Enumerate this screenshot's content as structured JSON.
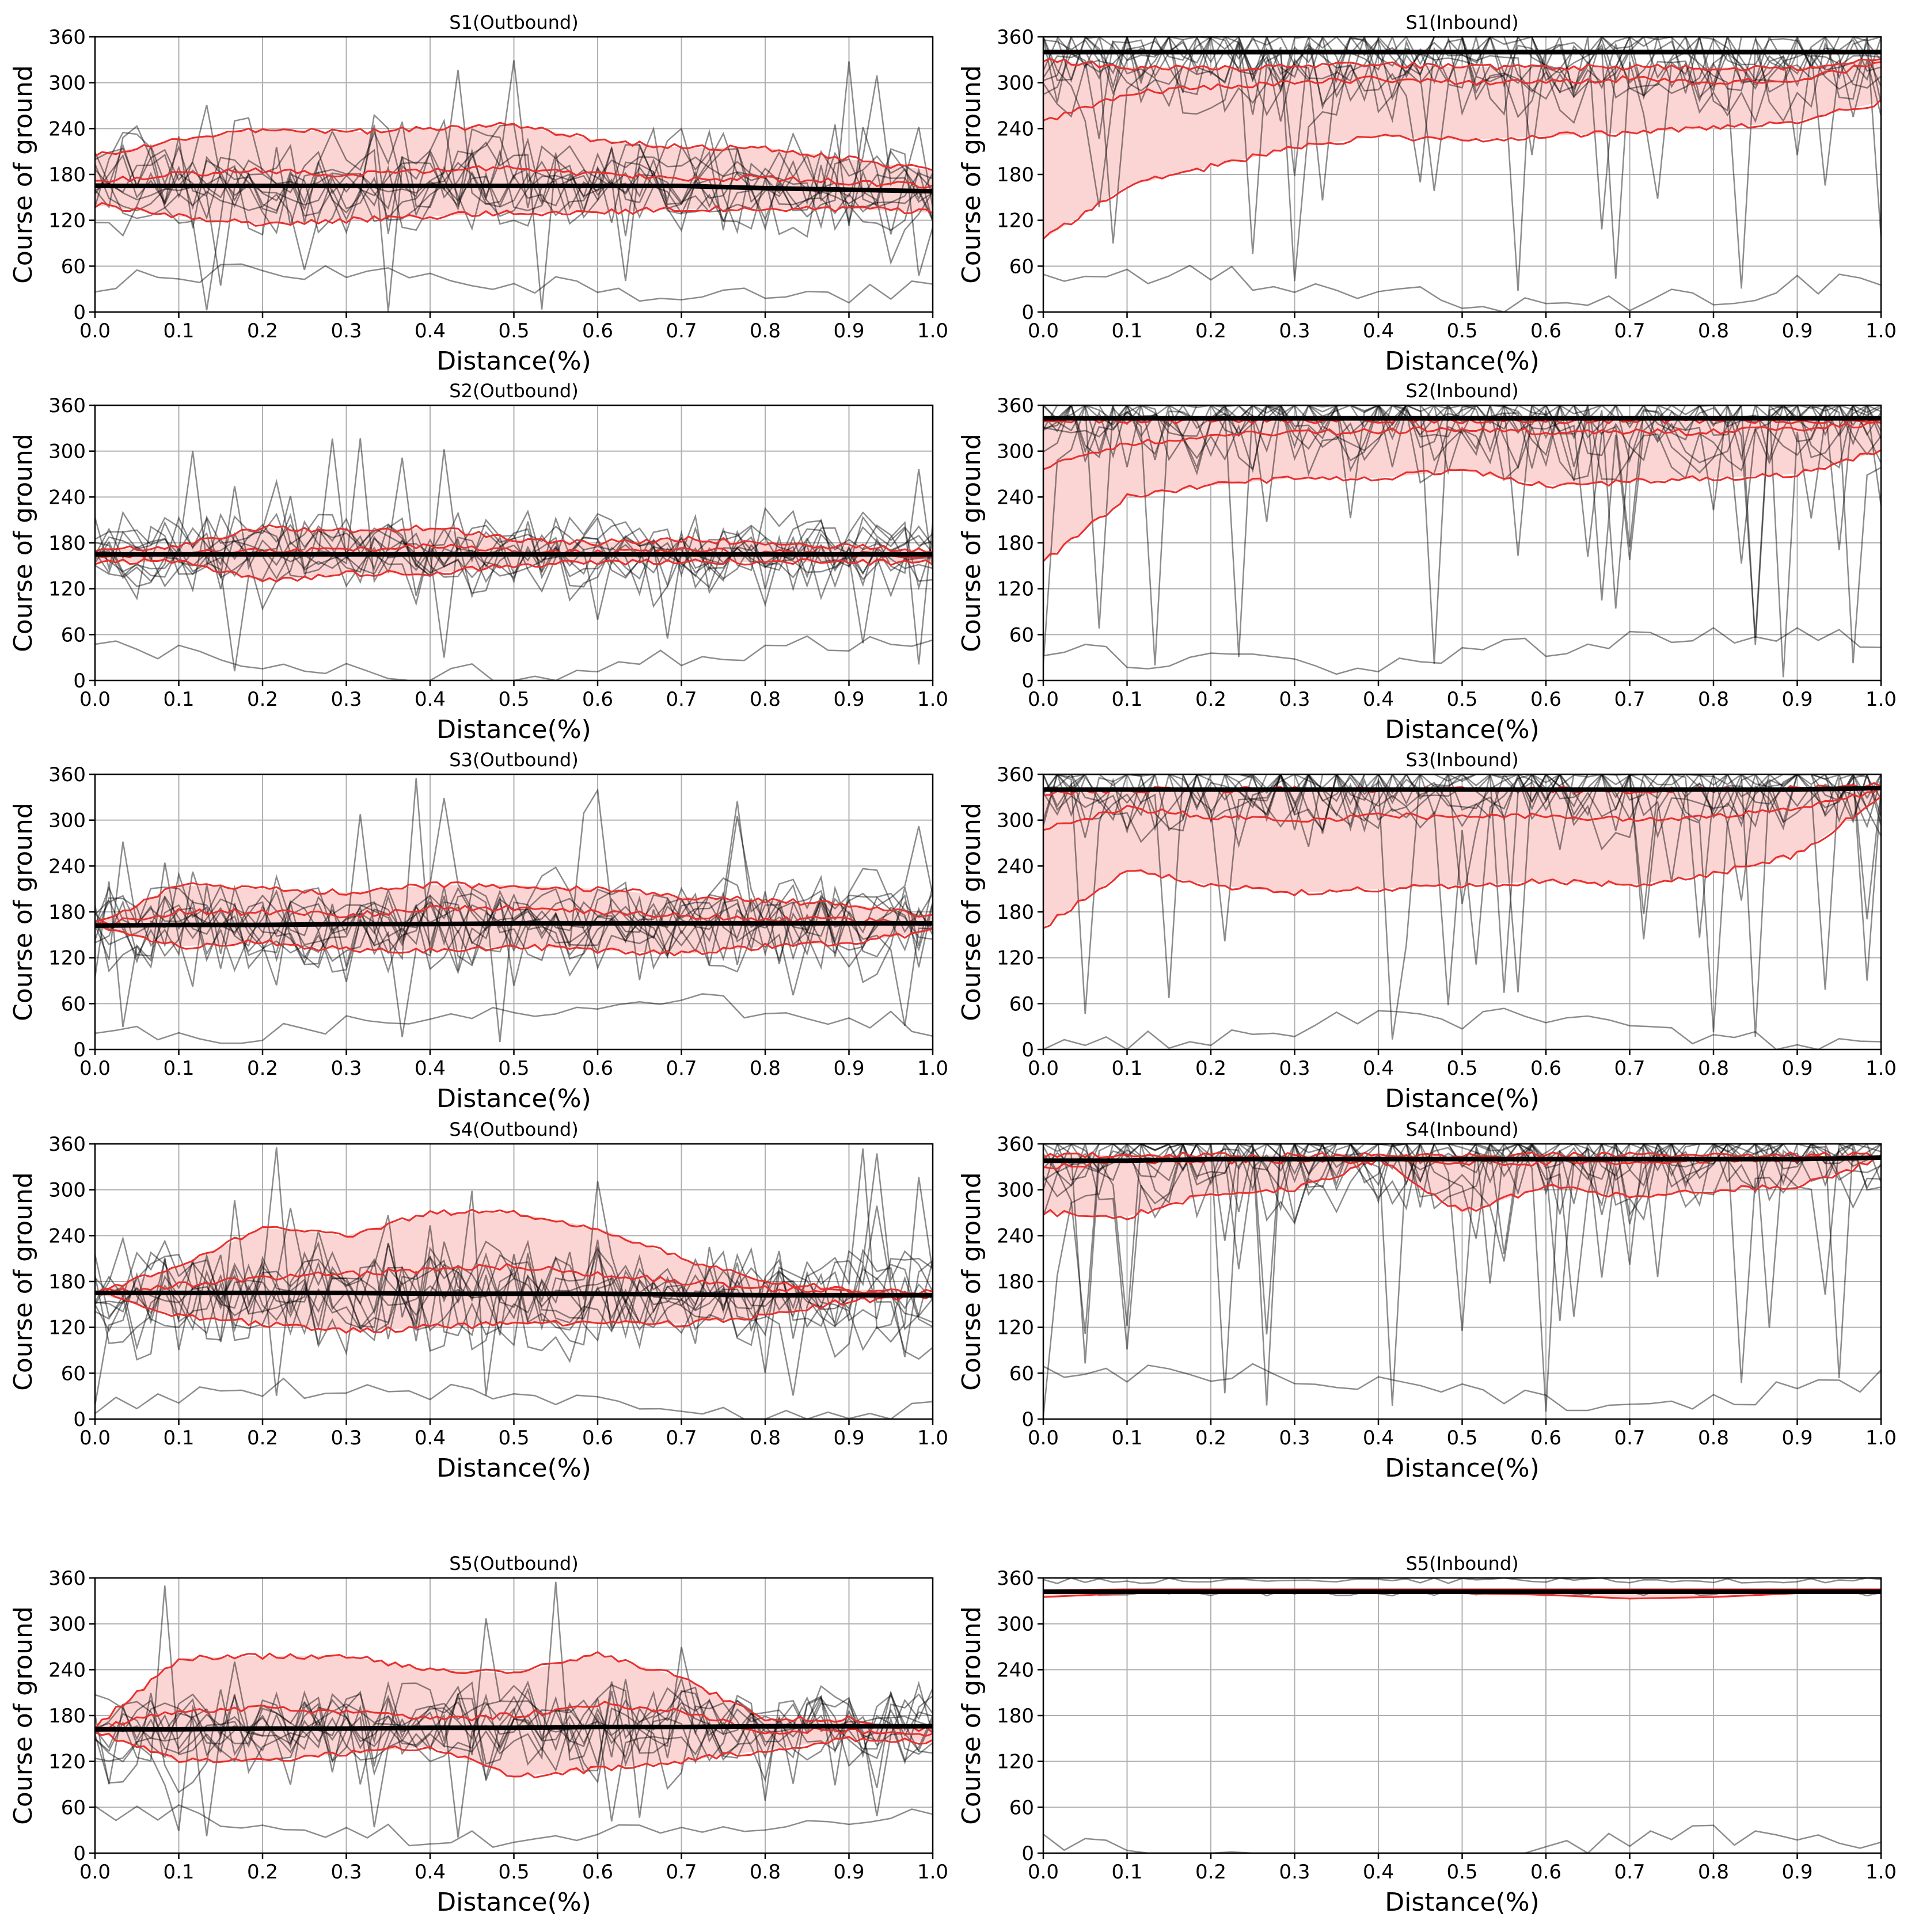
{
  "figure": {
    "panel_titles": [
      "S1(Outbound)",
      "S1(Inbound)",
      "S2(Outbound)",
      "S2(Inbound)",
      "S3(Outbound)",
      "S3(Inbound)",
      "S4(Outbound)",
      "S4(Inbound)",
      "S5(Outbound)",
      "S5(Inbound)"
    ],
    "xlabel": "Distance(%)",
    "ylabel": "Course of ground",
    "colors": {
      "trajectory": "#000000",
      "band_line": "#e8302e",
      "band_fill": "#fbd4d4",
      "grid": "#b0b0b0"
    }
  },
  "chart_data": [
    {
      "type": "line",
      "title": "S1(Outbound)",
      "xlabel": "Distance(%)",
      "ylabel": "Course of ground",
      "xlim": [
        0,
        1
      ],
      "ylim": [
        0,
        360
      ],
      "xticks": [
        "0.0",
        "0.1",
        "0.2",
        "0.3",
        "0.4",
        "0.5",
        "0.6",
        "0.7",
        "0.8",
        "0.9",
        "1.0"
      ],
      "yticks": [
        "0",
        "60",
        "120",
        "180",
        "240",
        "300",
        "360"
      ],
      "grid": true,
      "x": [
        0,
        0.1,
        0.2,
        0.3,
        0.4,
        0.5,
        0.6,
        0.7,
        0.8,
        0.9,
        1.0
      ],
      "series": [
        {
          "role": "mean",
          "values": [
            165,
            165,
            165,
            165,
            165,
            165,
            165,
            165,
            162,
            160,
            158
          ]
        },
        {
          "role": "band_upper",
          "values": [
            205,
            225,
            240,
            235,
            240,
            245,
            225,
            215,
            215,
            200,
            185
          ]
        },
        {
          "role": "band_middle",
          "values": [
            170,
            180,
            185,
            180,
            185,
            190,
            180,
            175,
            175,
            170,
            165
          ]
        },
        {
          "role": "band_lower",
          "values": [
            140,
            125,
            115,
            120,
            125,
            130,
            130,
            135,
            135,
            135,
            130
          ]
        }
      ]
    },
    {
      "type": "line",
      "title": "S1(Inbound)",
      "xlabel": "Distance(%)",
      "ylabel": "Course of ground",
      "xlim": [
        0,
        1
      ],
      "ylim": [
        0,
        360
      ],
      "xticks": [
        "0.0",
        "0.1",
        "0.2",
        "0.3",
        "0.4",
        "0.5",
        "0.6",
        "0.7",
        "0.8",
        "0.9",
        "1.0"
      ],
      "yticks": [
        "0",
        "60",
        "120",
        "180",
        "240",
        "300",
        "360"
      ],
      "grid": true,
      "x": [
        0,
        0.1,
        0.2,
        0.3,
        0.4,
        0.5,
        0.6,
        0.7,
        0.8,
        0.9,
        1.0
      ],
      "series": [
        {
          "role": "mean",
          "values": [
            340,
            340,
            340,
            340,
            340,
            340,
            340,
            340,
            340,
            340,
            340
          ]
        },
        {
          "role": "band_upper",
          "values": [
            330,
            320,
            320,
            320,
            325,
            320,
            320,
            320,
            320,
            320,
            330
          ]
        },
        {
          "role": "band_middle",
          "values": [
            250,
            285,
            295,
            300,
            305,
            300,
            300,
            305,
            300,
            305,
            325
          ]
        },
        {
          "role": "band_lower",
          "values": [
            95,
            165,
            190,
            215,
            230,
            225,
            230,
            235,
            240,
            250,
            275
          ]
        }
      ]
    },
    {
      "type": "line",
      "title": "S2(Outbound)",
      "xlabel": "Distance(%)",
      "ylabel": "Course of ground",
      "xlim": [
        0,
        1
      ],
      "ylim": [
        0,
        360
      ],
      "xticks": [
        "0.0",
        "0.1",
        "0.2",
        "0.3",
        "0.4",
        "0.5",
        "0.6",
        "0.7",
        "0.8",
        "0.9",
        "1.0"
      ],
      "yticks": [
        "0",
        "60",
        "120",
        "180",
        "240",
        "300",
        "360"
      ],
      "grid": true,
      "x": [
        0,
        0.1,
        0.2,
        0.3,
        0.4,
        0.5,
        0.6,
        0.7,
        0.8,
        0.9,
        1.0
      ],
      "series": [
        {
          "role": "mean",
          "values": [
            165,
            165,
            165,
            165,
            165,
            165,
            165,
            165,
            165,
            165,
            165
          ]
        },
        {
          "role": "band_upper",
          "values": [
            170,
            175,
            200,
            195,
            200,
            185,
            180,
            185,
            180,
            175,
            170
          ]
        },
        {
          "role": "band_middle",
          "values": [
            162,
            165,
            170,
            170,
            175,
            170,
            168,
            170,
            168,
            165,
            163
          ]
        },
        {
          "role": "band_lower",
          "values": [
            155,
            155,
            130,
            140,
            140,
            150,
            155,
            155,
            155,
            155,
            155
          ]
        }
      ]
    },
    {
      "type": "line",
      "title": "S2(Inbound)",
      "xlabel": "Distance(%)",
      "ylabel": "Course of ground",
      "xlim": [
        0,
        1
      ],
      "ylim": [
        0,
        360
      ],
      "xticks": [
        "0.0",
        "0.1",
        "0.2",
        "0.3",
        "0.4",
        "0.5",
        "0.6",
        "0.7",
        "0.8",
        "0.9",
        "1.0"
      ],
      "yticks": [
        "0",
        "60",
        "120",
        "180",
        "240",
        "300",
        "360"
      ],
      "grid": true,
      "x": [
        0,
        0.1,
        0.2,
        0.3,
        0.4,
        0.5,
        0.6,
        0.7,
        0.8,
        0.9,
        1.0
      ],
      "series": [
        {
          "role": "mean",
          "values": [
            343,
            343,
            343,
            343,
            343,
            343,
            343,
            343,
            343,
            343,
            343
          ]
        },
        {
          "role": "band_upper",
          "values": [
            340,
            340,
            340,
            340,
            340,
            340,
            340,
            340,
            340,
            340,
            340
          ]
        },
        {
          "role": "band_middle",
          "values": [
            280,
            310,
            320,
            325,
            325,
            330,
            325,
            325,
            325,
            330,
            335
          ]
        },
        {
          "role": "band_lower",
          "values": [
            155,
            240,
            255,
            265,
            265,
            275,
            255,
            260,
            265,
            270,
            300
          ]
        }
      ]
    },
    {
      "type": "line",
      "title": "S3(Outbound)",
      "xlabel": "Distance(%)",
      "ylabel": "Course of ground",
      "xlim": [
        0,
        1
      ],
      "ylim": [
        0,
        360
      ],
      "xticks": [
        "0.0",
        "0.1",
        "0.2",
        "0.3",
        "0.4",
        "0.5",
        "0.6",
        "0.7",
        "0.8",
        "0.9",
        "1.0"
      ],
      "yticks": [
        "0",
        "60",
        "120",
        "180",
        "240",
        "300",
        "360"
      ],
      "grid": true,
      "x": [
        0,
        0.1,
        0.2,
        0.3,
        0.4,
        0.5,
        0.6,
        0.7,
        0.8,
        0.9,
        1.0
      ],
      "series": [
        {
          "role": "mean",
          "values": [
            162,
            163,
            163,
            164,
            164,
            165,
            165,
            165,
            165,
            165,
            165
          ]
        },
        {
          "role": "band_upper",
          "values": [
            165,
            215,
            210,
            205,
            215,
            215,
            210,
            200,
            195,
            190,
            175
          ]
        },
        {
          "role": "band_middle",
          "values": [
            163,
            180,
            180,
            175,
            185,
            185,
            180,
            175,
            170,
            170,
            165
          ]
        },
        {
          "role": "band_lower",
          "values": [
            160,
            135,
            140,
            130,
            130,
            135,
            130,
            125,
            135,
            140,
            155
          ]
        }
      ]
    },
    {
      "type": "line",
      "title": "S3(Inbound)",
      "xlabel": "Distance(%)",
      "ylabel": "Course of ground",
      "xlim": [
        0,
        1
      ],
      "ylim": [
        0,
        360
      ],
      "xticks": [
        "0.0",
        "0.1",
        "0.2",
        "0.3",
        "0.4",
        "0.5",
        "0.6",
        "0.7",
        "0.8",
        "0.9",
        "1.0"
      ],
      "yticks": [
        "0",
        "60",
        "120",
        "180",
        "240",
        "300",
        "360"
      ],
      "grid": true,
      "x": [
        0,
        0.1,
        0.2,
        0.3,
        0.4,
        0.5,
        0.6,
        0.7,
        0.8,
        0.9,
        1.0
      ],
      "series": [
        {
          "role": "mean",
          "values": [
            340,
            340,
            340,
            340,
            340,
            340,
            340,
            340,
            340,
            340,
            342
          ]
        },
        {
          "role": "band_upper",
          "values": [
            335,
            340,
            340,
            340,
            340,
            340,
            340,
            338,
            340,
            342,
            345
          ]
        },
        {
          "role": "band_middle",
          "values": [
            290,
            315,
            305,
            300,
            305,
            305,
            305,
            300,
            305,
            315,
            340
          ]
        },
        {
          "role": "band_lower",
          "values": [
            160,
            235,
            215,
            205,
            210,
            215,
            220,
            215,
            230,
            255,
            330
          ]
        }
      ]
    },
    {
      "type": "line",
      "title": "S4(Outbound)",
      "xlabel": "Distance(%)",
      "ylabel": "Course of ground",
      "xlim": [
        0,
        1
      ],
      "ylim": [
        0,
        360
      ],
      "xticks": [
        "0.0",
        "0.1",
        "0.2",
        "0.3",
        "0.4",
        "0.5",
        "0.6",
        "0.7",
        "0.8",
        "0.9",
        "1.0"
      ],
      "yticks": [
        "0",
        "60",
        "120",
        "180",
        "240",
        "300",
        "360"
      ],
      "grid": true,
      "x": [
        0,
        0.1,
        0.2,
        0.3,
        0.4,
        0.5,
        0.6,
        0.7,
        0.8,
        0.9,
        1.0
      ],
      "series": [
        {
          "role": "mean",
          "values": [
            165,
            165,
            165,
            165,
            164,
            164,
            164,
            163,
            162,
            162,
            162
          ]
        },
        {
          "role": "band_upper",
          "values": [
            165,
            200,
            250,
            240,
            270,
            270,
            250,
            210,
            180,
            170,
            165
          ]
        },
        {
          "role": "band_middle",
          "values": [
            165,
            175,
            185,
            190,
            195,
            200,
            190,
            180,
            170,
            165,
            162
          ]
        },
        {
          "role": "band_lower",
          "values": [
            165,
            135,
            125,
            115,
            120,
            125,
            125,
            125,
            135,
            155,
            160
          ]
        }
      ]
    },
    {
      "type": "line",
      "title": "S4(Inbound)",
      "xlabel": "Distance(%)",
      "ylabel": "Course of ground",
      "xlim": [
        0,
        1
      ],
      "ylim": [
        0,
        360
      ],
      "xticks": [
        "0.0",
        "0.1",
        "0.2",
        "0.3",
        "0.4",
        "0.5",
        "0.6",
        "0.7",
        "0.8",
        "0.9",
        "1.0"
      ],
      "yticks": [
        "0",
        "60",
        "120",
        "180",
        "240",
        "300",
        "360"
      ],
      "grid": true,
      "x": [
        0,
        0.1,
        0.2,
        0.3,
        0.4,
        0.5,
        0.6,
        0.7,
        0.8,
        0.9,
        1.0
      ],
      "series": [
        {
          "role": "mean",
          "values": [
            338,
            338,
            340,
            340,
            340,
            340,
            340,
            340,
            340,
            340,
            342
          ]
        },
        {
          "role": "band_upper",
          "values": [
            345,
            345,
            345,
            345,
            345,
            345,
            345,
            345,
            345,
            345,
            345
          ]
        },
        {
          "role": "band_middle",
          "values": [
            330,
            338,
            338,
            338,
            338,
            335,
            335,
            335,
            338,
            340,
            342
          ]
        },
        {
          "role": "band_lower",
          "values": [
            270,
            265,
            295,
            300,
            340,
            270,
            305,
            290,
            300,
            305,
            340
          ]
        }
      ]
    },
    {
      "type": "line",
      "title": "S5(Outbound)",
      "xlabel": "Distance(%)",
      "ylabel": "Course of ground",
      "xlim": [
        0,
        1
      ],
      "ylim": [
        0,
        360
      ],
      "xticks": [
        "0.0",
        "0.1",
        "0.2",
        "0.3",
        "0.4",
        "0.5",
        "0.6",
        "0.7",
        "0.8",
        "0.9",
        "1.0"
      ],
      "yticks": [
        "0",
        "60",
        "120",
        "180",
        "240",
        "300",
        "360"
      ],
      "grid": true,
      "x": [
        0,
        0.1,
        0.2,
        0.3,
        0.4,
        0.5,
        0.6,
        0.7,
        0.8,
        0.9,
        1.0
      ],
      "series": [
        {
          "role": "mean",
          "values": [
            162,
            162,
            163,
            163,
            164,
            164,
            165,
            165,
            166,
            166,
            166
          ]
        },
        {
          "role": "band_upper",
          "values": [
            165,
            255,
            258,
            258,
            240,
            235,
            260,
            230,
            175,
            175,
            160
          ]
        },
        {
          "role": "band_middle",
          "values": [
            163,
            185,
            190,
            185,
            175,
            180,
            195,
            185,
            160,
            160,
            155
          ]
        },
        {
          "role": "band_lower",
          "values": [
            160,
            120,
            122,
            130,
            140,
            100,
            110,
            120,
            135,
            150,
            145
          ]
        }
      ]
    },
    {
      "type": "line",
      "title": "S5(Inbound)",
      "xlabel": "Distance(%)",
      "ylabel": "Course of ground",
      "xlim": [
        0,
        1
      ],
      "ylim": [
        0,
        360
      ],
      "xticks": [
        "0.0",
        "0.1",
        "0.2",
        "0.3",
        "0.4",
        "0.5",
        "0.6",
        "0.7",
        "0.8",
        "0.9",
        "1.0"
      ],
      "yticks": [
        "0",
        "60",
        "120",
        "180",
        "240",
        "300",
        "360"
      ],
      "grid": true,
      "x": [
        0,
        0.1,
        0.2,
        0.3,
        0.4,
        0.5,
        0.6,
        0.7,
        0.8,
        0.9,
        1.0
      ],
      "series": [
        {
          "role": "mean",
          "values": [
            342,
            342,
            342,
            342,
            342,
            342,
            342,
            342,
            342,
            342,
            342
          ]
        },
        {
          "role": "band_upper",
          "values": [
            344,
            345,
            345,
            345,
            345,
            345,
            345,
            345,
            345,
            345,
            345
          ]
        },
        {
          "role": "band_middle",
          "values": [
            340,
            342,
            342,
            342,
            342,
            342,
            342,
            340,
            340,
            342,
            342
          ]
        },
        {
          "role": "band_lower",
          "values": [
            335,
            340,
            340,
            340,
            340,
            340,
            338,
            333,
            335,
            340,
            342
          ]
        }
      ]
    }
  ]
}
